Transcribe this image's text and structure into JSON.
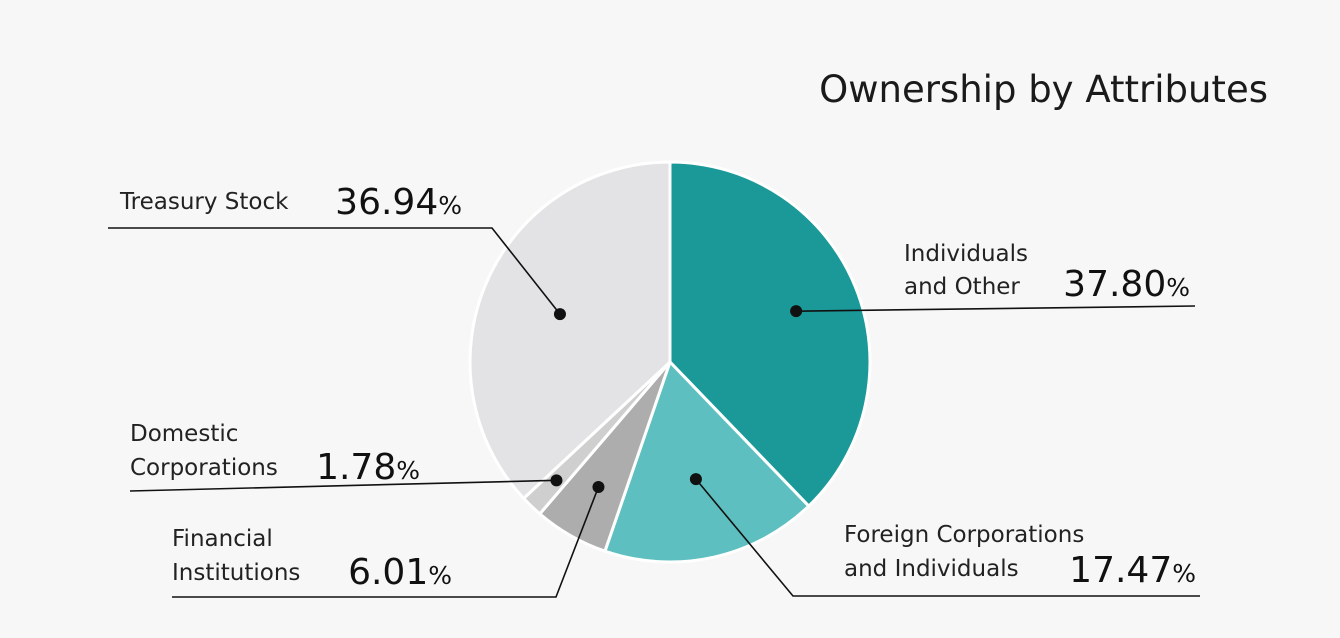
{
  "chart_data": {
    "type": "pie",
    "title": "Ownership by Attributes",
    "slices": [
      {
        "label_lines": [
          "Individuals",
          "and Other"
        ],
        "value": 37.8,
        "value_text": "37.80",
        "unit": "%",
        "color": "#1b9999"
      },
      {
        "label_lines": [
          "Foreign Corporations",
          "and Individuals"
        ],
        "value": 17.47,
        "value_text": "17.47",
        "unit": "%",
        "color": "#5dbfbf"
      },
      {
        "label_lines": [
          "Financial",
          "Institutions"
        ],
        "value": 6.01,
        "value_text": "6.01",
        "unit": "%",
        "color": "#adadad"
      },
      {
        "label_lines": [
          "Domestic",
          "Corporations"
        ],
        "value": 1.78,
        "value_text": "1.78",
        "unit": "%",
        "color": "#cfcfcf"
      },
      {
        "label_lines": [
          "Treasury Stock"
        ],
        "value": 36.94,
        "value_text": "36.94",
        "unit": "%",
        "color": "#e3e3e5"
      }
    ],
    "start_angle_deg": 0,
    "direction": "clockwise"
  }
}
